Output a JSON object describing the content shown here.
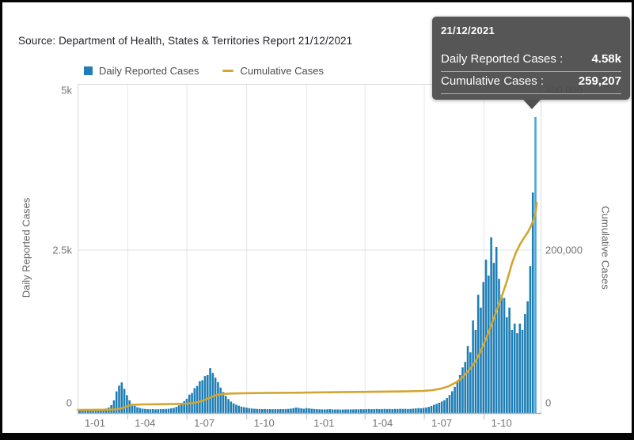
{
  "source": {
    "text": "Source: Department of Health, States & Territories Report 21/12/2021"
  },
  "legend": {
    "daily_label": "Daily Reported Cases",
    "cumulative_label": "Cumulative Cases"
  },
  "tooltip": {
    "date": "21/12/2021",
    "daily_label": "Daily Reported Cases :",
    "daily_value": "4.58k",
    "cumulative_label": "Cumulative Cases :",
    "cumulative_value": "259,207"
  },
  "colors": {
    "bar": "#1f7eb5",
    "bar_highlight": "#4aa8d8",
    "line": "#d2a62f",
    "grid": "#e6e6e6",
    "plot_border": "#d9d9d9",
    "axis_line": "#b5b5b5",
    "tick_mark": "#bdbdbd",
    "tick_text": "#757575",
    "tooltip_bg": "#4b4b4b"
  },
  "chart_data": {
    "type": "combo: bar (daily) + line (cumulative), dual y-axes",
    "title": "",
    "x_domain": [
      "2020-01-01",
      "2021-12-21"
    ],
    "x_domain_days": {
      "start": 14,
      "end": 727,
      "series_end": 720
    },
    "bucket_days": 4,
    "x_axis": {
      "labels": [
        "1-01",
        "1-04",
        "1-07",
        "1-10",
        "1-01",
        "1-04",
        "1-07",
        "1-10"
      ],
      "grid_days": [
        91,
        182,
        274,
        366,
        456,
        547,
        639
      ]
    },
    "left_axis": {
      "title": "Daily Reported Cases",
      "max": 5000,
      "ticks": [
        {
          "label": "5k",
          "v": 5000
        },
        {
          "label": "2.5k",
          "v": 2500
        },
        {
          "label": "0",
          "v": 0
        }
      ]
    },
    "right_axis": {
      "title": "Cumulative Cases",
      "max": 400000,
      "ticks": [
        {
          "label": "400,000",
          "v": 400000
        },
        {
          "label": "200,000",
          "v": 200000
        },
        {
          "label": "0",
          "v": 0
        }
      ]
    },
    "daily_reported_cases": [
      2,
      1,
      2,
      3,
      2,
      4,
      3,
      5,
      4,
      6,
      5,
      8,
      10,
      14,
      22,
      38,
      75,
      150,
      290,
      380,
      430,
      330,
      230,
      150,
      95,
      62,
      42,
      30,
      20,
      15,
      12,
      10,
      12,
      9,
      11,
      13,
      12,
      15,
      18,
      24,
      32,
      48,
      72,
      100,
      135,
      175,
      240,
      265,
      340,
      375,
      450,
      465,
      530,
      545,
      655,
      580,
      505,
      435,
      350,
      280,
      220,
      170,
      130,
      102,
      82,
      66,
      52,
      43,
      36,
      28,
      22,
      18,
      15,
      14,
      12,
      14,
      11,
      13,
      10,
      12,
      11,
      13,
      12,
      14,
      16,
      20,
      28,
      38,
      32,
      24,
      18,
      30,
      24,
      18,
      14,
      11,
      9,
      8,
      7,
      9,
      12,
      8,
      6,
      7,
      5,
      6,
      8,
      7,
      9,
      8,
      10,
      9,
      11,
      10,
      12,
      14,
      11,
      13,
      15,
      12,
      14,
      16,
      13,
      15,
      12,
      16,
      14,
      18,
      15,
      17,
      14,
      16,
      20,
      24,
      28,
      26,
      32,
      38,
      48,
      62,
      80,
      95,
      112,
      132,
      152,
      185,
      232,
      292,
      362,
      442,
      545,
      665,
      750,
      1000,
      900,
      1400,
      1250,
      1800,
      1600,
      2000,
      2350,
      2100,
      2700,
      2300,
      2550,
      2050,
      1800,
      1750,
      1450,
      1600,
      1250,
      1350,
      1200,
      1350,
      1250,
      1500,
      1700,
      2250,
      3400,
      4580
    ],
    "highlighted_last_bar": {
      "date": "21/12/2021",
      "value": 4580
    },
    "cumulative_cases_keypoints": [
      [
        14,
        0
      ],
      [
        55,
        200
      ],
      [
        70,
        700
      ],
      [
        78,
        1400
      ],
      [
        84,
        2600
      ],
      [
        88,
        3800
      ],
      [
        92,
        5200
      ],
      [
        97,
        6100
      ],
      [
        104,
        6600
      ],
      [
        115,
        6900
      ],
      [
        135,
        7100
      ],
      [
        160,
        7300
      ],
      [
        180,
        7700
      ],
      [
        190,
        8400
      ],
      [
        198,
        9600
      ],
      [
        206,
        11500
      ],
      [
        214,
        14200
      ],
      [
        222,
        17000
      ],
      [
        230,
        19000
      ],
      [
        240,
        20100
      ],
      [
        252,
        20600
      ],
      [
        270,
        20900
      ],
      [
        300,
        21200
      ],
      [
        340,
        21500
      ],
      [
        366,
        21700
      ],
      [
        400,
        22100
      ],
      [
        440,
        22500
      ],
      [
        480,
        22900
      ],
      [
        520,
        23300
      ],
      [
        545,
        23800
      ],
      [
        560,
        24800
      ],
      [
        572,
        26500
      ],
      [
        584,
        29500
      ],
      [
        596,
        34500
      ],
      [
        606,
        41000
      ],
      [
        616,
        50000
      ],
      [
        626,
        61000
      ],
      [
        634,
        74000
      ],
      [
        642,
        89000
      ],
      [
        650,
        106000
      ],
      [
        658,
        124000
      ],
      [
        666,
        142000
      ],
      [
        674,
        161000
      ],
      [
        682,
        184000
      ],
      [
        688,
        197000
      ],
      [
        694,
        207000
      ],
      [
        700,
        215000
      ],
      [
        706,
        222000
      ],
      [
        711,
        230000
      ],
      [
        715,
        238000
      ],
      [
        718,
        246000
      ],
      [
        720,
        259207
      ]
    ],
    "grid": "vertical gridlines at quarter starts; horizontal gridline at 2.5k / 200,000",
    "legend_position": "top-left above plot"
  }
}
